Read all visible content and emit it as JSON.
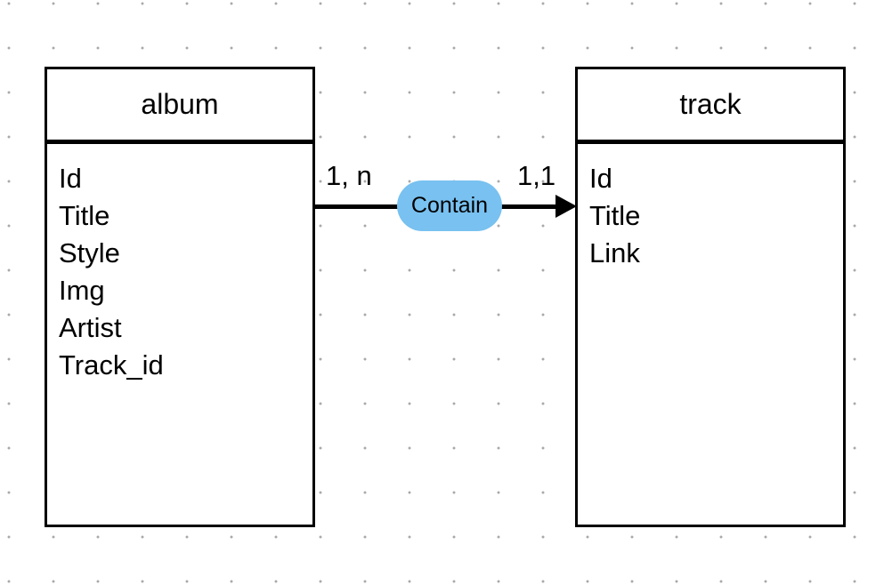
{
  "entities": [
    {
      "name": "album",
      "fields": [
        "Id",
        "Title",
        "Style",
        "Img",
        "Artist",
        "Track_id"
      ]
    },
    {
      "name": "track",
      "fields": [
        "Id",
        "Title",
        "Link"
      ]
    }
  ],
  "relationship": {
    "label": "Contain",
    "source_cardinality": "1, n",
    "target_cardinality": "1,1",
    "pill_color": "#78c1f0",
    "line_color": "#000000"
  }
}
